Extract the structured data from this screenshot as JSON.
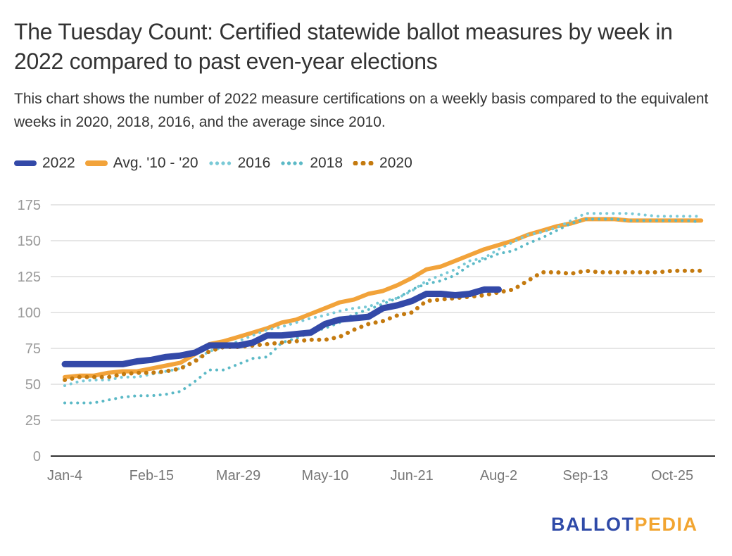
{
  "header": {
    "title": "The Tuesday Count: Certified statewide ballot measures by week in 2022 compared to past even-year elections",
    "subtitle": "This chart shows the number of 2022 measure certifications on a weekly basis compared to the equivalent weeks in 2020, 2018, 2016, and the average since 2010."
  },
  "logo": {
    "part1": "BALLOT",
    "part2": "PEDIA"
  },
  "chart_data": {
    "type": "line",
    "title": "The Tuesday Count: Certified statewide ballot measures by week in 2022 compared to past even-year elections",
    "xlabel": "",
    "ylabel": "",
    "ylim": [
      0,
      175
    ],
    "yticks": [
      0,
      25,
      50,
      75,
      100,
      125,
      150,
      175
    ],
    "xtick_labels": [
      "Jan-4",
      "Feb-15",
      "Mar-29",
      "May-10",
      "Jun-21",
      "Aug-2",
      "Sep-13",
      "Oct-25"
    ],
    "xtick_weeks": [
      0,
      6,
      12,
      18,
      24,
      30,
      36,
      42
    ],
    "x_weeks": 45,
    "grid": true,
    "legend_position": "top-left",
    "series": [
      {
        "name": "2022",
        "style": "solid-thick",
        "color": "#3349a8",
        "values": [
          64,
          64,
          64,
          64,
          64,
          66,
          67,
          69,
          70,
          72,
          77,
          77,
          77,
          79,
          84,
          84,
          85,
          86,
          92,
          95,
          96,
          97,
          103,
          105,
          108,
          113,
          113,
          112,
          113,
          116,
          116
        ]
      },
      {
        "name": "Avg. '10 - '20",
        "style": "solid",
        "color": "#f2a33a",
        "values": [
          55,
          56,
          56,
          58,
          59,
          59,
          61,
          63,
          65,
          71,
          78,
          80,
          83,
          86,
          89,
          93,
          95,
          99,
          103,
          107,
          109,
          113,
          115,
          119,
          124,
          130,
          132,
          136,
          140,
          144,
          147,
          150,
          154,
          157,
          160,
          162,
          165,
          165,
          165,
          164,
          164,
          164,
          164,
          164,
          164
        ]
      },
      {
        "name": "2016",
        "style": "dotted",
        "color": "#79c9d6",
        "values": [
          49,
          52,
          53,
          53,
          55,
          55,
          57,
          59,
          61,
          67,
          73,
          76,
          80,
          84,
          88,
          90,
          93,
          96,
          98,
          101,
          103,
          104,
          108,
          110,
          115,
          122,
          126,
          130,
          136,
          138,
          144,
          149,
          154,
          156,
          159,
          164,
          169,
          169,
          169,
          169,
          168,
          167,
          167,
          167,
          167
        ]
      },
      {
        "name": "2018",
        "style": "dotted",
        "color": "#5bb9c6",
        "values": [
          37,
          37,
          37,
          39,
          41,
          42,
          42,
          43,
          45,
          52,
          60,
          60,
          64,
          68,
          69,
          79,
          82,
          86,
          89,
          93,
          99,
          102,
          106,
          110,
          116,
          120,
          122,
          126,
          133,
          137,
          141,
          143,
          148,
          152,
          157,
          162,
          165,
          165,
          165,
          164,
          164,
          164,
          164,
          164,
          163
        ]
      },
      {
        "name": "2020",
        "style": "dotted-bold",
        "color": "#c47a0f",
        "values": [
          53,
          55,
          55,
          55,
          57,
          58,
          58,
          59,
          61,
          66,
          73,
          76,
          76,
          77,
          78,
          79,
          80,
          81,
          81,
          83,
          88,
          92,
          94,
          98,
          100,
          108,
          109,
          110,
          111,
          112,
          114,
          116,
          122,
          128,
          128,
          127,
          129,
          128,
          128,
          128,
          128,
          128,
          129,
          129,
          129
        ]
      }
    ]
  }
}
